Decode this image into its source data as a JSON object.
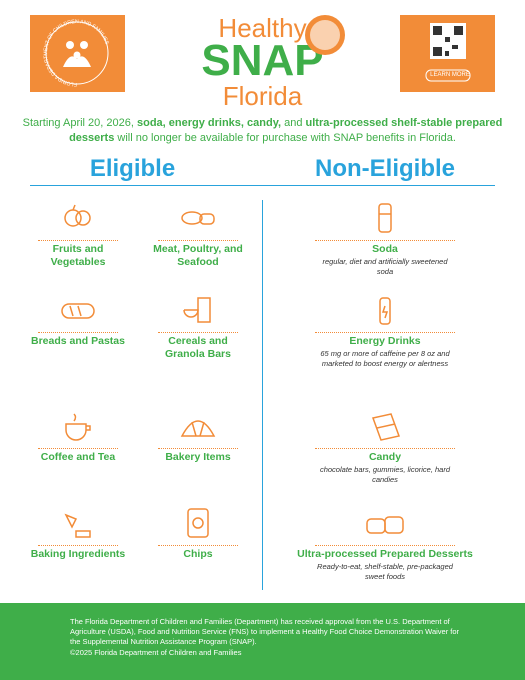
{
  "header": {
    "logo_text": "FLORIDA DEPARTMENT OF CHILDREN AND FAMILIES",
    "title_top": "Healthy",
    "title_main": "SNAP",
    "title_bottom": "Florida",
    "qr_label": "LEARN MORE"
  },
  "intro": [
    {
      "text": "Starting April 20, 2026, ",
      "bold": false
    },
    {
      "text": "soda, energy drinks, candy,",
      "bold": true
    },
    {
      "text": " and ",
      "bold": false
    },
    {
      "text": "ultra-processed shelf-stable prepared desserts",
      "bold": true
    },
    {
      "text": " will no longer be available for purchase with SNAP benefits in Florida.",
      "bold": false
    }
  ],
  "eligible": {
    "heading": "Eligible",
    "items": [
      "Fruits and Vegetables",
      "Meat, Poultry, and Seafood",
      "Breads and Pastas",
      "Cereals and Granola Bars",
      "Coffee and Tea",
      "Bakery Items",
      "Baking Ingredients",
      "Chips"
    ]
  },
  "non_eligible": {
    "heading": "Non-Eligible",
    "items": [
      {
        "name": "Soda",
        "description": "regular, diet and artificially sweetened soda"
      },
      {
        "name": "Energy Drinks",
        "description": "65 mg or more of caffeine per 8 oz and marketed to boost energy or alertness"
      },
      {
        "name": "Candy",
        "description": "chocolate bars, gummies, licorice, hard candies"
      },
      {
        "name": "Ultra-processed Prepared Desserts",
        "description": "Ready-to-eat, shelf-stable, pre-packaged sweet foods"
      }
    ]
  },
  "footer": {
    "text": "The Florida Department of Children and Families (Department) has received approval from the U.S. Department of Agriculture (USDA), Food and Nutrition Service (FNS) to implement a Healthy Food Choice Demonstration Waiver for the Supplemental Nutrition Assistance Program (SNAP).",
    "copyright": "©2025 Florida Department of Children and Families"
  }
}
